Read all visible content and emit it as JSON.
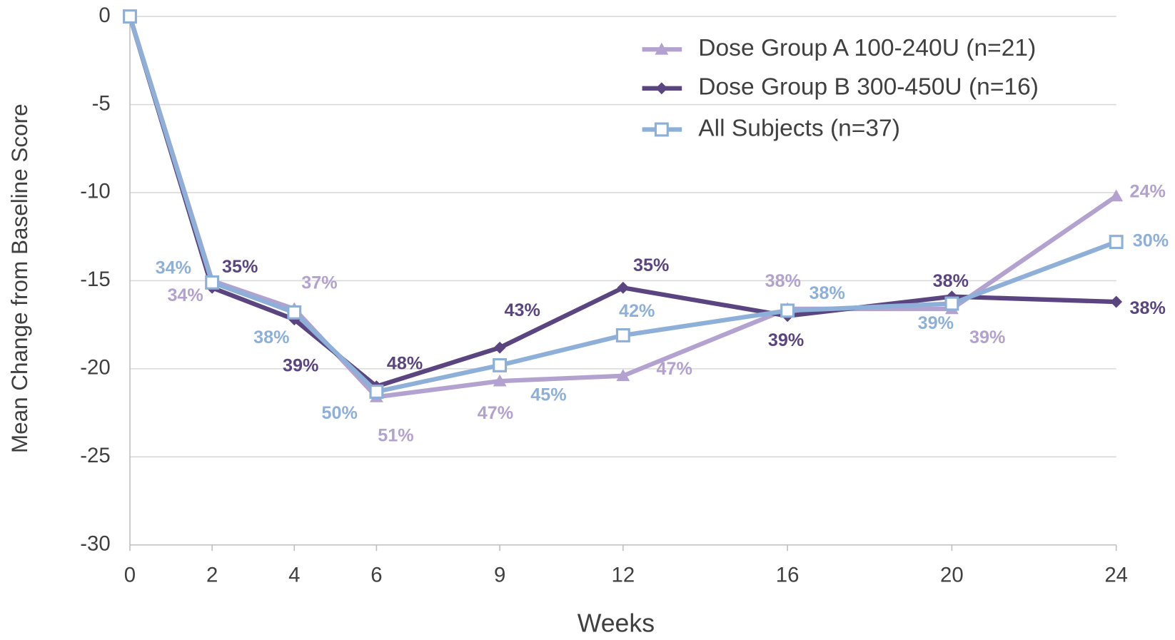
{
  "chart_data": {
    "type": "line",
    "y_label": "Mean Change from Baseline Score",
    "x_label": "Weeks",
    "x": [
      0,
      2,
      4,
      6,
      9,
      12,
      16,
      20,
      24
    ],
    "xlim": [
      0,
      24
    ],
    "xticks": [
      0,
      2,
      4,
      6,
      9,
      12,
      16,
      20,
      24
    ],
    "ylim": [
      -30,
      0
    ],
    "yticks": [
      0,
      -5,
      -10,
      -15,
      -20,
      -25,
      -30
    ],
    "grid": true,
    "legend": "upper right",
    "series": [
      {
        "name": "Dose Group A 100-240U (n=21)",
        "color": "#b3a2cf",
        "marker": "triangle",
        "values": [
          0,
          -15,
          -16.6,
          -21.6,
          -20.7,
          -20.4,
          -16.6,
          -16.6,
          -10.2
        ],
        "point_labels": [
          null,
          "34%",
          "37%",
          "51%",
          "47%",
          "47%",
          "38%",
          "39%",
          "24%"
        ]
      },
      {
        "name": "Dose Group B 300-450U (n=16)",
        "color": "#5b4580",
        "marker": "diamond",
        "values": [
          0,
          -15.4,
          -17.2,
          -21,
          -18.8,
          -15.4,
          -17,
          -15.9,
          -16.2
        ],
        "point_labels": [
          null,
          "35%",
          "39%",
          "48%",
          "43%",
          "35%",
          "39%",
          "38%",
          "38%"
        ]
      },
      {
        "name": "All Subjects (n=37)",
        "color": "#8eb0d8",
        "marker": "square",
        "values": [
          0,
          -15.1,
          -16.8,
          -21.3,
          -19.8,
          -18.1,
          -16.7,
          -16.3,
          -12.8
        ],
        "point_labels": [
          null,
          "34%",
          "38%",
          "50%",
          "45%",
          "42%",
          "38%",
          "39%",
          "30%"
        ]
      }
    ]
  }
}
